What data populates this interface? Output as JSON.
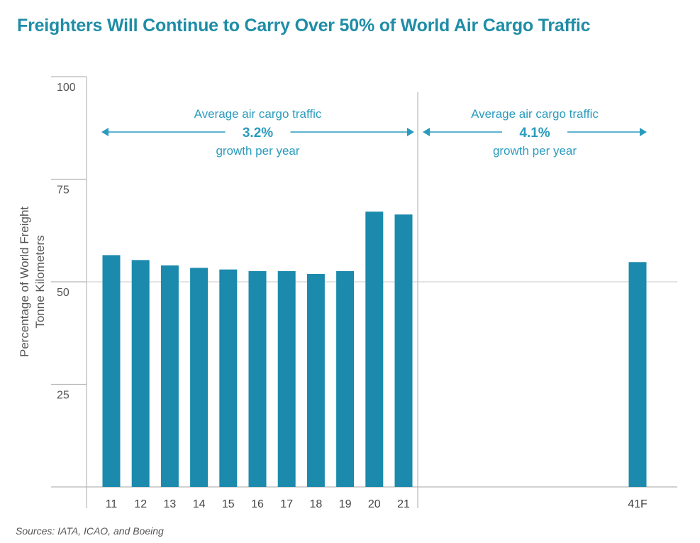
{
  "colors": {
    "bar": "#1b8aad",
    "title": "#1f8da6",
    "annotation": "#2a9bbd",
    "axis_text": "#555555",
    "axis_line": "#b8b8b8"
  },
  "chart_data": {
    "type": "bar",
    "title": "Freighters Will Continue to Carry Over 50% of World Air Cargo Traffic",
    "ylabel_lines": [
      "Percentage of World Freight",
      "Tonne Kilometers"
    ],
    "xlabel": "",
    "ylim": [
      0,
      100
    ],
    "yticks": [
      25,
      50,
      75,
      100
    ],
    "gridlines": [
      50
    ],
    "categories": [
      "11",
      "12",
      "13",
      "14",
      "15",
      "16",
      "17",
      "18",
      "19",
      "20",
      "21",
      "41F"
    ],
    "values": [
      56.5,
      55.3,
      54.0,
      53.4,
      53.0,
      52.6,
      52.6,
      51.9,
      52.6,
      67.1,
      66.4,
      54.8
    ],
    "annotations": [
      {
        "id": "historical",
        "lines": [
          "Average air cargo traffic",
          "3.2%",
          "growth per year"
        ],
        "span": [
          "11",
          "21"
        ]
      },
      {
        "id": "forecast",
        "lines": [
          "Average air cargo traffic",
          "4.1%",
          "growth per year"
        ],
        "span": [
          "21",
          "41F"
        ]
      }
    ],
    "source": "Sources: IATA, ICAO, and Boeing"
  }
}
